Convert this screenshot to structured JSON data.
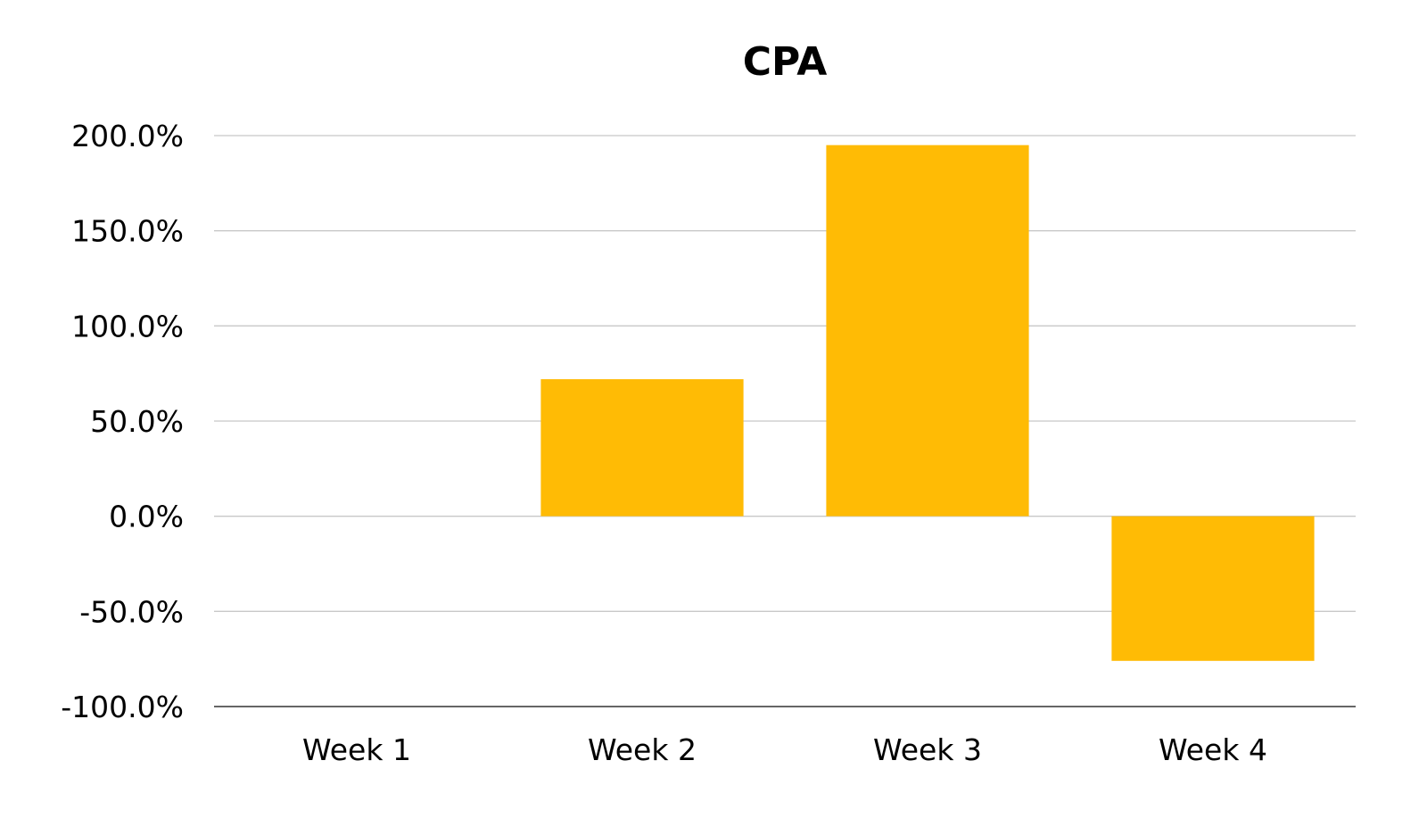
{
  "chart_data": {
    "type": "bar",
    "title": "CPA",
    "categories": [
      "Week 1",
      "Week 2",
      "Week 3",
      "Week 4"
    ],
    "series": [
      {
        "name": "CPA",
        "values": [
          0,
          72,
          195,
          -76
        ]
      }
    ],
    "xlabel": "",
    "ylabel": "",
    "ylim": [
      -100,
      200
    ],
    "yticks": [
      200,
      150,
      100,
      50,
      0,
      -50,
      -100
    ],
    "ytick_labels": [
      "200.0%",
      "150.0%",
      "100.0%",
      "50.0%",
      "0.0%",
      "-50.0%",
      "-100.0%"
    ],
    "grid": true,
    "legend": "none",
    "colors": {
      "bar": "#FFBB05",
      "grid": "#C8C8C8",
      "axis": "#333333",
      "text": "#000000"
    }
  }
}
